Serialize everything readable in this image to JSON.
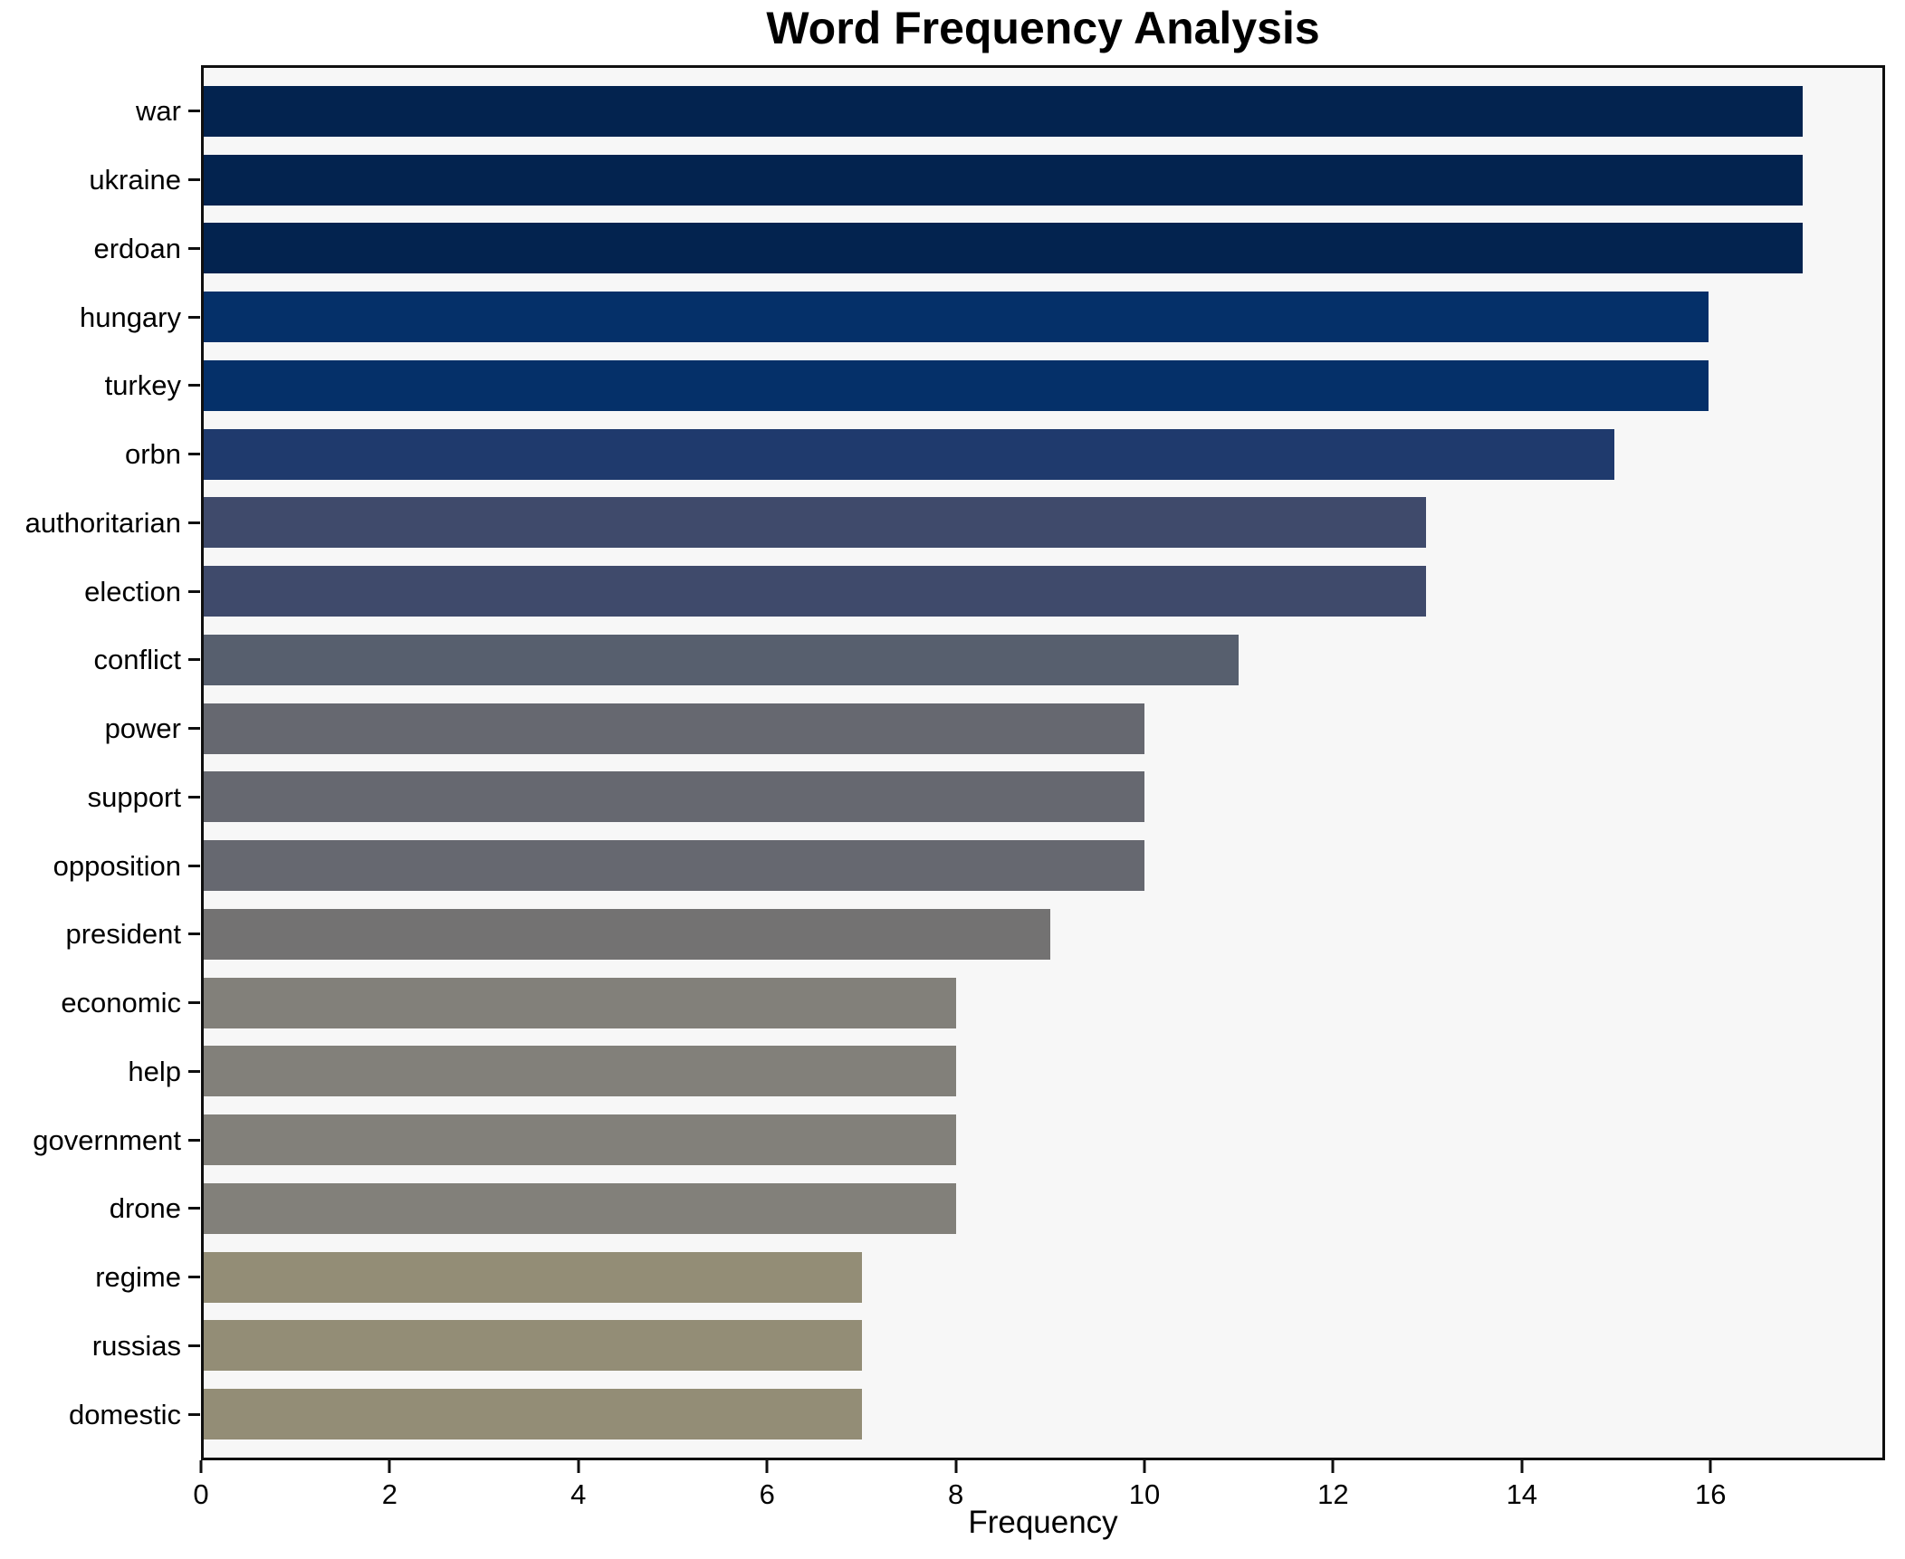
{
  "chart_data": {
    "type": "bar",
    "orientation": "horizontal",
    "title": "Word Frequency Analysis",
    "xlabel": "Frequency",
    "ylabel": "",
    "grid": false,
    "legend": false,
    "xlim": [
      0,
      17.85
    ],
    "x_ticks": [
      0,
      2,
      4,
      6,
      8,
      10,
      12,
      14,
      16
    ],
    "categories": [
      "war",
      "ukraine",
      "erdoan",
      "hungary",
      "turkey",
      "orbn",
      "authoritarian",
      "election",
      "conflict",
      "power",
      "support",
      "opposition",
      "president",
      "economic",
      "help",
      "government",
      "drone",
      "regime",
      "russias",
      "domestic"
    ],
    "values": [
      17,
      17,
      17,
      16,
      16,
      15,
      13,
      13,
      11,
      10,
      10,
      10,
      9,
      8,
      8,
      8,
      8,
      7,
      7,
      7
    ],
    "bar_colors": [
      "#03234f",
      "#03234f",
      "#03234f",
      "#053069",
      "#053069",
      "#1f3a6d",
      "#3f4a6b",
      "#3f4a6b",
      "#575f6e",
      "#666870",
      "#666870",
      "#666870",
      "#737272",
      "#82807a",
      "#82807a",
      "#82807a",
      "#82807a",
      "#938d76",
      "#938d76",
      "#938d76"
    ],
    "plot_bg": "#f7f7f7",
    "fig_bg": "#ffffff",
    "spine_color": "#0f0f0f",
    "text_color": "#000000"
  }
}
